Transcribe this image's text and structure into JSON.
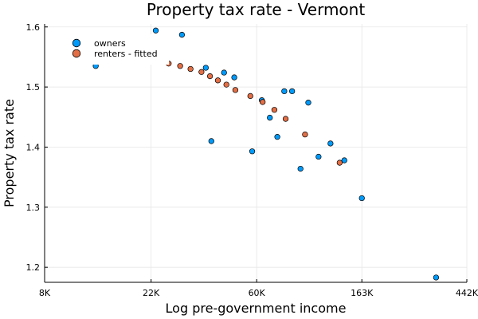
{
  "chart_data": {
    "type": "scatter",
    "title": "Property tax rate - Vermont",
    "xlabel": "Log pre-government income",
    "ylabel": "Property tax rate",
    "x_scale": "log",
    "xlim": [
      8000,
      442000
    ],
    "ylim": [
      1.175,
      1.605
    ],
    "x_ticks": [
      {
        "value": 8000,
        "label": "8K"
      },
      {
        "value": 22000,
        "label": "22K"
      },
      {
        "value": 60000,
        "label": "60K"
      },
      {
        "value": 163000,
        "label": "163K"
      },
      {
        "value": 442000,
        "label": "442K"
      }
    ],
    "y_ticks": [
      {
        "value": 1.2,
        "label": "1.2"
      },
      {
        "value": 1.3,
        "label": "1.3"
      },
      {
        "value": 1.4,
        "label": "1.4"
      },
      {
        "value": 1.5,
        "label": "1.5"
      },
      {
        "value": 1.6,
        "label": "1.6"
      }
    ],
    "grid": true,
    "legend_position": "top-left",
    "series": [
      {
        "name": "owners",
        "color": "#009AFA",
        "points": [
          {
            "x": 13000,
            "y": 1.535
          },
          {
            "x": 23000,
            "y": 1.594
          },
          {
            "x": 29500,
            "y": 1.587
          },
          {
            "x": 37000,
            "y": 1.532
          },
          {
            "x": 39000,
            "y": 1.41
          },
          {
            "x": 44000,
            "y": 1.524
          },
          {
            "x": 48500,
            "y": 1.516
          },
          {
            "x": 57500,
            "y": 1.393
          },
          {
            "x": 63000,
            "y": 1.478
          },
          {
            "x": 68000,
            "y": 1.449
          },
          {
            "x": 73000,
            "y": 1.417
          },
          {
            "x": 78000,
            "y": 1.493
          },
          {
            "x": 84000,
            "y": 1.493
          },
          {
            "x": 91000,
            "y": 1.364
          },
          {
            "x": 98000,
            "y": 1.474
          },
          {
            "x": 108000,
            "y": 1.384
          },
          {
            "x": 121000,
            "y": 1.406
          },
          {
            "x": 138000,
            "y": 1.378
          },
          {
            "x": 163000,
            "y": 1.315
          },
          {
            "x": 330000,
            "y": 1.183
          }
        ]
      },
      {
        "name": "renters - fitted",
        "color": "#E26F46",
        "points": [
          {
            "x": 26000,
            "y": 1.539
          },
          {
            "x": 29000,
            "y": 1.535
          },
          {
            "x": 32000,
            "y": 1.53
          },
          {
            "x": 35500,
            "y": 1.525
          },
          {
            "x": 38500,
            "y": 1.518
          },
          {
            "x": 41500,
            "y": 1.511
          },
          {
            "x": 45000,
            "y": 1.504
          },
          {
            "x": 49000,
            "y": 1.495
          },
          {
            "x": 56500,
            "y": 1.485
          },
          {
            "x": 63500,
            "y": 1.475
          },
          {
            "x": 71000,
            "y": 1.462
          },
          {
            "x": 79000,
            "y": 1.447
          },
          {
            "x": 95000,
            "y": 1.421
          },
          {
            "x": 132000,
            "y": 1.374
          }
        ]
      }
    ]
  }
}
